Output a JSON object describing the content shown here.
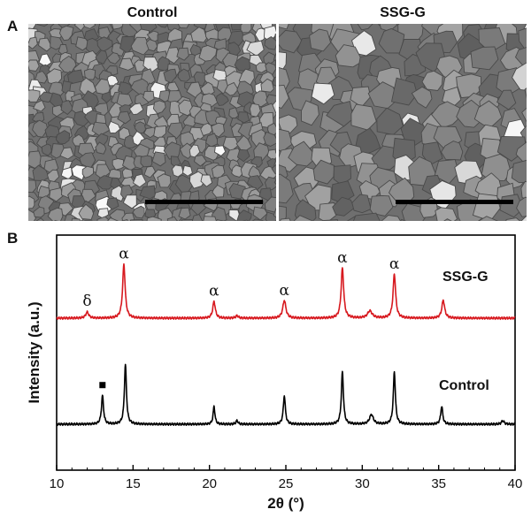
{
  "panel_a": {
    "letter": "A",
    "images": [
      {
        "title": "Control",
        "texture": "fine-grain-sem",
        "scale_bar": true
      },
      {
        "title": "SSG-G",
        "texture": "coarse-grain-sem",
        "scale_bar": true
      }
    ]
  },
  "panel_b": {
    "letter": "B"
  },
  "chart_data": {
    "type": "line",
    "xlabel": "2θ (°)",
    "ylabel": "Intensity (a.u.)",
    "xlim": [
      10,
      40
    ],
    "xticks": [
      10,
      15,
      20,
      25,
      30,
      35,
      40
    ],
    "y_units": "arbitrary",
    "grid": false,
    "legend": "none",
    "series": [
      {
        "name": "SSG-G",
        "color": "#d7191f",
        "baseline": 1.0,
        "peaks": [
          {
            "x": 12.0,
            "h": 0.05,
            "w": 0.12
          },
          {
            "x": 14.4,
            "h": 0.45,
            "w": 0.1
          },
          {
            "x": 20.3,
            "h": 0.14,
            "w": 0.1
          },
          {
            "x": 21.8,
            "h": 0.02,
            "w": 0.1
          },
          {
            "x": 24.9,
            "h": 0.15,
            "w": 0.12
          },
          {
            "x": 28.7,
            "h": 0.42,
            "w": 0.1
          },
          {
            "x": 30.5,
            "h": 0.06,
            "w": 0.18
          },
          {
            "x": 32.1,
            "h": 0.37,
            "w": 0.1
          },
          {
            "x": 35.3,
            "h": 0.15,
            "w": 0.11
          }
        ]
      },
      {
        "name": "Control",
        "color": "#000000",
        "baseline": 0.0,
        "peaks": [
          {
            "x": 13.0,
            "h": 0.24,
            "w": 0.08
          },
          {
            "x": 14.5,
            "h": 0.5,
            "w": 0.08
          },
          {
            "x": 20.3,
            "h": 0.15,
            "w": 0.07
          },
          {
            "x": 21.8,
            "h": 0.03,
            "w": 0.08
          },
          {
            "x": 24.9,
            "h": 0.24,
            "w": 0.08
          },
          {
            "x": 28.7,
            "h": 0.44,
            "w": 0.08
          },
          {
            "x": 30.6,
            "h": 0.08,
            "w": 0.15
          },
          {
            "x": 32.1,
            "h": 0.44,
            "w": 0.08
          },
          {
            "x": 35.2,
            "h": 0.15,
            "w": 0.08
          },
          {
            "x": 39.2,
            "h": 0.03,
            "w": 0.1
          }
        ]
      }
    ],
    "annotations": [
      {
        "text": "δ",
        "x": 12.0,
        "series": "SSG-G"
      },
      {
        "text": "α",
        "x": 14.4,
        "series": "SSG-G"
      },
      {
        "text": "α",
        "x": 20.3,
        "series": "SSG-G"
      },
      {
        "text": "α",
        "x": 24.9,
        "series": "SSG-G"
      },
      {
        "text": "α",
        "x": 28.7,
        "series": "SSG-G"
      },
      {
        "text": "α",
        "x": 32.1,
        "series": "SSG-G"
      },
      {
        "text": "■",
        "x": 13.0,
        "series": "Control"
      }
    ]
  }
}
